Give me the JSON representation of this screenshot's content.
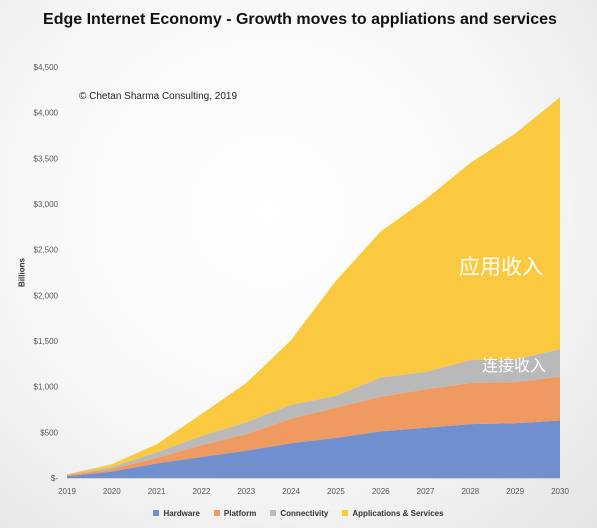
{
  "chart_data": {
    "type": "area",
    "stacked": true,
    "title": "Edge Internet Economy - Growth moves to appliations and services",
    "ylabel": "Billions",
    "xlabel": "",
    "ylim": [
      0,
      4500
    ],
    "x": [
      "2019",
      "2020",
      "2021",
      "2022",
      "2023",
      "2024",
      "2025",
      "2026",
      "2027",
      "2028",
      "2029",
      "2030"
    ],
    "y_ticks": [
      "$-",
      "$500",
      "$1,000",
      "$1,500",
      "$2,000",
      "$2,500",
      "$3,000",
      "$3,500",
      "$4,000",
      "$4,500"
    ],
    "grid": false,
    "legend_position": "bottom",
    "series": [
      {
        "name": "Hardware",
        "color": "#6f8fcf",
        "values": [
          20,
          70,
          160,
          230,
          300,
          380,
          440,
          510,
          550,
          590,
          600,
          630
        ]
      },
      {
        "name": "Platform",
        "color": "#ee9a61",
        "values": [
          10,
          30,
          60,
          130,
          180,
          270,
          330,
          380,
          420,
          450,
          450,
          480
        ]
      },
      {
        "name": "Connectivity",
        "color": "#b9b9b9",
        "values": [
          5,
          20,
          60,
          100,
          130,
          150,
          130,
          210,
          190,
          250,
          250,
          300
        ]
      },
      {
        "name": "Applications & Services",
        "color": "#fbc93f",
        "values": [
          5,
          30,
          90,
          240,
          430,
          710,
          1260,
          1600,
          1890,
          2160,
          2470,
          2760
        ]
      }
    ],
    "annotations": {
      "copyright": "© Chetan Sharma Consulting, 2019",
      "apps_label": "应用收入",
      "conn_label": "连接收入"
    }
  }
}
